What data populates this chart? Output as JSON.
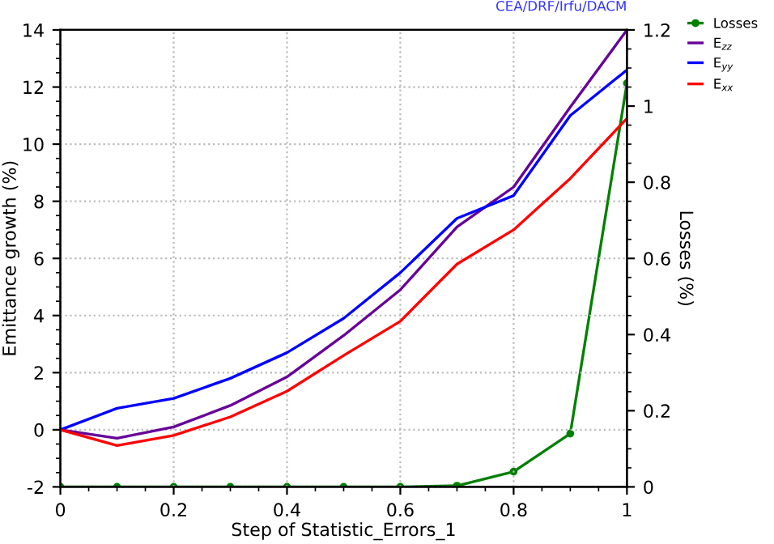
{
  "chart_data": {
    "type": "line",
    "xlabel": "Step of Statistic_Errors_1",
    "ylabel": "Emittance growth (%)",
    "y2label": "Losses (%)",
    "annotations": [
      "CEA/DRF/Irfu/DACM"
    ],
    "x": [
      0,
      0.1,
      0.2,
      0.3,
      0.4,
      0.5,
      0.6,
      0.7,
      0.8,
      0.9,
      1.0
    ],
    "xlim": [
      0,
      1
    ],
    "xticks": [
      0,
      0.2,
      0.4,
      0.6,
      0.8,
      1
    ],
    "ylim": [
      -2,
      14
    ],
    "yticks": [
      -2,
      0,
      2,
      4,
      6,
      8,
      10,
      12,
      14
    ],
    "y2lim": [
      0,
      1.2
    ],
    "y2ticks": [
      0,
      0.2,
      0.4,
      0.6,
      0.8,
      1,
      1.2
    ],
    "grid": true,
    "legend": "top right",
    "series": [
      {
        "name": "Losses",
        "color": "#008000",
        "axis": "y2",
        "marker": "circle",
        "values": [
          0,
          0,
          0,
          0,
          0,
          0,
          0,
          0.003,
          0.04,
          0.14,
          1.06
        ]
      },
      {
        "name": "E$_{zz}$",
        "color": "#660099",
        "values": [
          0,
          -0.3,
          0.1,
          0.85,
          1.85,
          3.3,
          4.9,
          7.1,
          8.5,
          11.3,
          14.0
        ]
      },
      {
        "name": "E$_{yy}$",
        "color": "#0000ff",
        "values": [
          0,
          0.75,
          1.1,
          1.8,
          2.7,
          3.9,
          5.5,
          7.4,
          8.2,
          11.0,
          12.6
        ]
      },
      {
        "name": "E$_{xx}$",
        "color": "#ff0000",
        "values": [
          0,
          -0.55,
          -0.2,
          0.45,
          1.35,
          2.6,
          3.8,
          5.8,
          7.0,
          8.8,
          10.9
        ]
      }
    ]
  }
}
